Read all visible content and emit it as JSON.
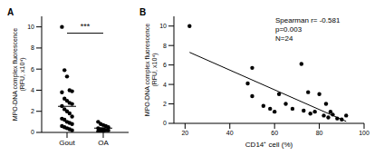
{
  "chart_data": [
    {
      "type": "scatter",
      "title": "A",
      "categories": [
        "Gout",
        "OA"
      ],
      "values": [
        [
          10,
          5.9,
          5.3,
          4.0,
          3.9,
          3.8,
          3.2,
          3.0,
          2.8,
          2.7,
          2.5,
          2.2,
          2.0,
          1.8,
          1.5,
          1.3,
          1.2,
          1.0,
          0.9,
          0.8,
          0.6,
          0.5,
          0.4,
          0.3,
          0.2
        ],
        [
          1.0,
          0.8,
          0.7,
          0.6,
          0.5,
          0.4,
          0.3,
          0.3,
          0.2,
          0.2,
          0.1,
          0.1,
          0.1
        ]
      ],
      "y_label": "MPO-DNA complex fluorescence (RFU, x10⁴)",
      "ylim": [
        0,
        11
      ],
      "yticks": [
        0,
        2,
        4,
        6,
        8,
        10
      ],
      "annotations": [
        "***"
      ],
      "marker": "circle",
      "color": "#000000"
    },
    {
      "type": "scatter",
      "title": "B",
      "x": [
        22,
        48,
        50,
        50,
        55,
        58,
        60,
        62,
        65,
        68,
        72,
        73,
        75,
        76,
        78,
        80,
        82,
        83,
        84,
        85,
        86,
        88,
        90,
        92
      ],
      "values": [
        10,
        4.1,
        5.7,
        2.8,
        1.8,
        1.5,
        1.2,
        3.0,
        2.0,
        1.5,
        6.1,
        1.3,
        3.2,
        1.0,
        1.2,
        3.0,
        0.8,
        2.0,
        0.6,
        1.2,
        0.9,
        0.5,
        0.4,
        0.8
      ],
      "trend_line": {
        "x": [
          22,
          92
        ],
        "y": [
          7.3,
          0.2
        ]
      },
      "x_label": "CD14⁺ cell (%)",
      "y_label": "MPO-DNA complex fluorescence (RFU, x10⁴)",
      "xlim": [
        15,
        100
      ],
      "xticks": [
        20,
        40,
        60,
        80,
        100
      ],
      "ylim": [
        0,
        11
      ],
      "yticks": [
        0,
        2,
        4,
        6,
        8,
        10
      ],
      "annotations": [
        "Spearman r= -0.581",
        "p=0.003",
        "N=24"
      ],
      "marker": "circle",
      "color": "#000000"
    }
  ]
}
